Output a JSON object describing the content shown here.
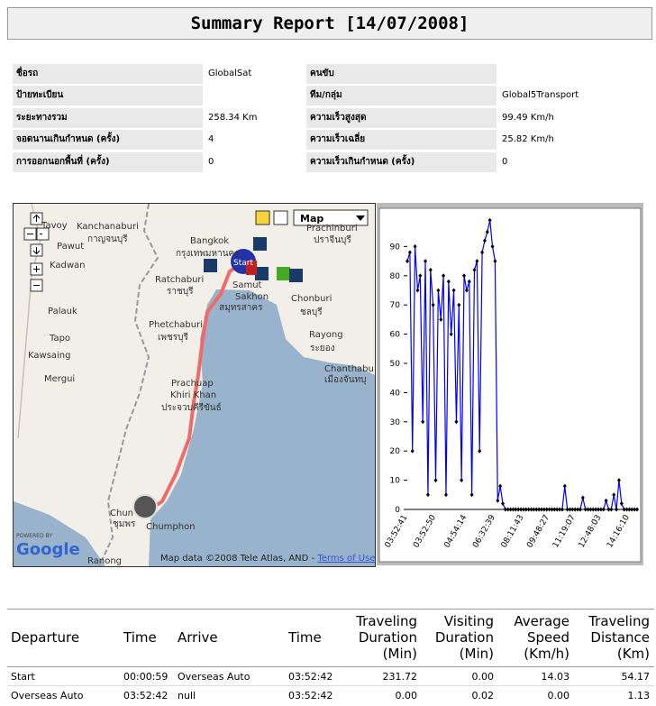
{
  "header": {
    "title": "Summary Report [14/07/2008]"
  },
  "info": {
    "left": [
      {
        "label": "ชื่อรถ",
        "value": "GlobalSat"
      },
      {
        "label": "ป้ายทะเบียน",
        "value": null
      },
      {
        "label": "ระยะทางรวม",
        "value": "258.34 Km"
      },
      {
        "label": "จอดนานเกินกำหนด (ครั้ง)",
        "value": "4"
      },
      {
        "label": "การออกนอกพื้นที่ (ครั้ง)",
        "value": "0"
      }
    ],
    "right": [
      {
        "label": "คนขับ",
        "value": null
      },
      {
        "label": "ทีม/กลุ่ม",
        "value": "Global5Transport"
      },
      {
        "label": "ความเร็วสูงสุด",
        "value": "99.49 Km/h"
      },
      {
        "label": "ความเร็วเฉลี่ย",
        "value": "25.82 Km/h"
      },
      {
        "label": "ความเร็วเกินกำหนด (ครั้ง)",
        "value": "0"
      }
    ]
  },
  "map": {
    "type_button": "Map",
    "start_marker": "Start",
    "labels": [
      "Tavoy",
      "Kanchanaburi",
      "กาญจนบุรี",
      "Pawut",
      "Kadwan",
      "Bangkok",
      "กรุงเทพมหานคร",
      "Prachinburi",
      "ปราจีนบุรี",
      "Ratchaburi",
      "ราชบุรี",
      "Samut",
      "Sakhon",
      "สมุทรสาคร",
      "Chonburi",
      "ชลบุรี",
      "Palauk",
      "Phetchaburi",
      "เพชรบุรี",
      "Rayong",
      "ระยอง",
      "Tapo",
      "Kawsaing",
      "Chanthabu",
      "เมืองจันทบุ",
      "Mergui",
      "Prachuap",
      "Khiri Khan",
      "ประจวบคีรีขันธ์",
      "Chun",
      "ชุมพร",
      "Chumphon",
      "Ranong"
    ],
    "powered_by": "POWERED BY",
    "logo": "Google",
    "copyright": "Map data ©2008 Tele Atlas, AND - ",
    "terms": "Terms of Use"
  },
  "chart_data": {
    "type": "line",
    "color": "#0000ff",
    "marker_color": "#000000",
    "categories": [
      "03:52:41",
      null,
      null,
      null,
      null,
      null,
      null,
      null,
      null,
      null,
      null,
      "03:52:50",
      null,
      null,
      null,
      null,
      null,
      null,
      null,
      null,
      null,
      null,
      null,
      "04:54:14",
      null,
      null,
      null,
      null,
      null,
      null,
      null,
      null,
      null,
      null,
      "06:32:39",
      null,
      null,
      null,
      null,
      null,
      null,
      null,
      null,
      null,
      null,
      "08:11:43",
      null,
      null,
      null,
      null,
      null,
      null,
      null,
      null,
      null,
      "09:48:27",
      null,
      null,
      null,
      null,
      null,
      null,
      null,
      null,
      null,
      "11:19:07",
      null,
      null,
      null,
      null,
      null,
      null,
      null,
      null,
      null,
      "12:48:03",
      null,
      null,
      null,
      null,
      null,
      null,
      null,
      null,
      null,
      null,
      "14:16:10",
      null,
      null,
      null
    ],
    "values": [
      85,
      88,
      20,
      90,
      75,
      80,
      30,
      85,
      5,
      82,
      70,
      10,
      75,
      65,
      80,
      5,
      78,
      60,
      75,
      30,
      70,
      10,
      80,
      75,
      78,
      5,
      82,
      85,
      20,
      88,
      92,
      95,
      99,
      90,
      85,
      3,
      8,
      2,
      0,
      0,
      0,
      0,
      0,
      0,
      0,
      0,
      0,
      0,
      0,
      0,
      0,
      0,
      0,
      0,
      0,
      0,
      0,
      0,
      0,
      0,
      0,
      8,
      0,
      0,
      0,
      0,
      0,
      0,
      4,
      0,
      0,
      0,
      0,
      0,
      0,
      0,
      0,
      3,
      0,
      0,
      5,
      0,
      10,
      2,
      0,
      0,
      0,
      0,
      0,
      0
    ],
    "ylim": [
      0,
      100
    ],
    "yticks": [
      0,
      10,
      20,
      30,
      40,
      50,
      60,
      70,
      80,
      90
    ]
  },
  "table": {
    "header": [
      [
        "Departure"
      ],
      [
        "Time"
      ],
      [
        "Arrive"
      ],
      [
        "Time"
      ],
      [
        "Traveling",
        "Duration",
        "(Min)"
      ],
      [
        "Visiting",
        "Duration",
        "(Min)"
      ],
      [
        "Average",
        "Speed",
        "(Km/h)"
      ],
      [
        "Traveling",
        "Distance",
        "(Km)"
      ]
    ],
    "rows": [
      [
        "Start",
        "00:00:59",
        "Overseas Auto",
        "03:52:42",
        "231.72",
        "0.00",
        "14.03",
        "54.17"
      ],
      [
        "Overseas Auto",
        "03:52:42",
        "null",
        "03:52:42",
        "0.00",
        "0.02",
        "0.00",
        "1.13"
      ]
    ]
  }
}
